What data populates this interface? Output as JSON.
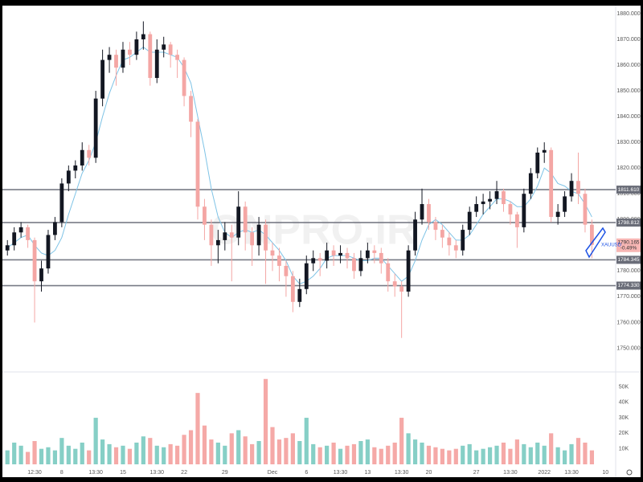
{
  "chart_data": [
    {
      "type": "candlestick",
      "watermark": "ONPRO.IR",
      "symbol": "XAUUSD",
      "categories": [
        null,
        null,
        null,
        null,
        "12:30",
        null,
        null,
        null,
        "8",
        null,
        null,
        null,
        null,
        "13:30",
        null,
        null,
        null,
        "15",
        null,
        null,
        null,
        null,
        "13:30",
        null,
        null,
        null,
        "22",
        null,
        null,
        null,
        null,
        null,
        "29",
        null,
        null,
        null,
        null,
        null,
        null,
        "Dec",
        null,
        null,
        null,
        null,
        "6",
        null,
        null,
        null,
        null,
        "13:30",
        null,
        null,
        null,
        "13",
        null,
        null,
        null,
        null,
        "13:30",
        null,
        null,
        null,
        "20",
        null,
        null,
        null,
        null,
        null,
        null,
        "27",
        null,
        null,
        null,
        null,
        "13:30",
        null,
        null,
        null,
        null,
        "2022",
        null,
        null,
        null,
        "13:30",
        null,
        null,
        null,
        null,
        "10"
      ],
      "open": [
        1788,
        1790,
        1795,
        1797,
        1792,
        1776,
        1781,
        1794,
        1799,
        1814,
        1819,
        1821,
        1827,
        1824,
        1847,
        1862,
        1864,
        1859,
        1866,
        1864,
        1870,
        1872,
        1855,
        1866,
        1868,
        1864,
        1862,
        1848,
        1838,
        1805,
        1798,
        1790,
        1792,
        1795,
        1793,
        1805,
        1795,
        1790,
        1798,
        1788,
        1786,
        1782,
        1778,
        1768,
        1773,
        1783,
        1785,
        1784,
        1788,
        1786,
        1787,
        1785,
        1780,
        1785,
        1788,
        1787,
        1783,
        1776,
        1774,
        1772,
        1788,
        1800,
        1806,
        1799,
        1796,
        1793,
        1790,
        1788,
        1796,
        1803,
        1806,
        1807,
        1808,
        1811,
        1806,
        1802,
        1797,
        1810,
        1818,
        1826,
        1827,
        1801,
        1803,
        1809,
        1815,
        1810,
        1798,
        null,
        null
      ],
      "high": [
        1792,
        1797,
        1799,
        1798,
        1793,
        1784,
        1796,
        1801,
        1816,
        1821,
        1823,
        1830,
        1829,
        1850,
        1866,
        1867,
        1866,
        1869,
        1869,
        1873,
        1877,
        1873,
        1870,
        1871,
        1869,
        1866,
        1863,
        1850,
        1839,
        1808,
        1800,
        1796,
        1799,
        1798,
        1811,
        1807,
        1797,
        1801,
        1800,
        1791,
        1789,
        1784,
        1780,
        1777,
        1786,
        1788,
        1787,
        1791,
        1790,
        1790,
        1789,
        1787,
        1788,
        1791,
        1790,
        1789,
        1785,
        1779,
        1776,
        1790,
        1803,
        1812,
        1808,
        1801,
        1798,
        1795,
        1792,
        1798,
        1805,
        1809,
        1810,
        1811,
        1815,
        1812,
        1807,
        1803,
        1812,
        1820,
        1828,
        1830,
        1828,
        1806,
        1811,
        1818,
        1826,
        1812,
        1800,
        null,
        null
      ],
      "low": [
        1786,
        1788,
        1793,
        1789,
        1760,
        1772,
        1779,
        1792,
        1797,
        1811,
        1816,
        1819,
        1821,
        1822,
        1844,
        1857,
        1852,
        1857,
        1860,
        1862,
        1866,
        1852,
        1853,
        1863,
        1859,
        1855,
        1844,
        1832,
        1800,
        1792,
        1782,
        1783,
        1788,
        1776,
        1790,
        1788,
        1782,
        1786,
        1775,
        1780,
        1776,
        1770,
        1764,
        1766,
        1771,
        1780,
        1778,
        1781,
        1782,
        1783,
        1781,
        1777,
        1778,
        1783,
        1783,
        1779,
        1772,
        1770,
        1754,
        1770,
        1786,
        1798,
        1796,
        1792,
        1789,
        1786,
        1785,
        1786,
        1794,
        1801,
        1802,
        1804,
        1806,
        1803,
        1798,
        1789,
        1795,
        1808,
        1816,
        1822,
        1799,
        1798,
        1801,
        1807,
        1806,
        1795,
        1785,
        null,
        null
      ],
      "close": [
        1790,
        1795,
        1797,
        1792,
        1776,
        1781,
        1794,
        1799,
        1814,
        1819,
        1821,
        1827,
        1824,
        1847,
        1862,
        1864,
        1859,
        1866,
        1864,
        1870,
        1872,
        1855,
        1866,
        1868,
        1864,
        1862,
        1848,
        1838,
        1805,
        1798,
        1790,
        1792,
        1795,
        1793,
        1805,
        1795,
        1790,
        1798,
        1788,
        1786,
        1782,
        1778,
        1768,
        1773,
        1783,
        1785,
        1784,
        1788,
        1786,
        1787,
        1785,
        1780,
        1785,
        1788,
        1787,
        1783,
        1776,
        1774,
        1772,
        1788,
        1800,
        1806,
        1799,
        1796,
        1793,
        1790,
        1788,
        1796,
        1803,
        1806,
        1807,
        1808,
        1811,
        1806,
        1802,
        1797,
        1810,
        1818,
        1826,
        1827,
        1801,
        1803,
        1809,
        1815,
        1810,
        1798,
        1790.165,
        null,
        null
      ],
      "ma": [
        1789,
        1791,
        1793,
        1794,
        1790,
        1787,
        1786,
        1788,
        1793,
        1802,
        1810,
        1818,
        1823,
        1830,
        1840,
        1849,
        1856,
        1862,
        1863,
        1865,
        1867,
        1865,
        1865,
        1865,
        1864,
        1863,
        1859,
        1853,
        1840,
        1827,
        1812,
        1801,
        1795,
        1793,
        1795,
        1796,
        1795,
        1796,
        1794,
        1791,
        1788,
        1784,
        1778,
        1775,
        1776,
        1778,
        1781,
        1785,
        1786,
        1786,
        1786,
        1785,
        1784,
        1784,
        1785,
        1785,
        1782,
        1779,
        1776,
        1778,
        1784,
        1792,
        1798,
        1800,
        1798,
        1795,
        1792,
        1792,
        1794,
        1798,
        1802,
        1805,
        1808,
        1808,
        1807,
        1805,
        1805,
        1808,
        1813,
        1820,
        1818,
        1814,
        1813,
        1811,
        1810,
        1806,
        1801,
        null,
        null
      ],
      "up_color": "#131722",
      "down_color": "#f4a6a4",
      "ma_color": "#7ec3e6",
      "ylim": [
        1741.1,
        1883.1
      ],
      "yticks": [
        {
          "value": 1880,
          "label": "1880.000"
        },
        {
          "value": 1870,
          "label": "1870.000"
        },
        {
          "value": 1860,
          "label": "1860.000"
        },
        {
          "value": 1850,
          "label": "1850.000"
        },
        {
          "value": 1840,
          "label": "1840.000"
        },
        {
          "value": 1830,
          "label": "1830.000"
        },
        {
          "value": 1820,
          "label": "1820.000"
        },
        {
          "value": 1810,
          "label": "1810.000"
        },
        {
          "value": 1800,
          "label": "1800.000"
        },
        {
          "value": 1790,
          "label": "1790.000"
        },
        {
          "value": 1780,
          "label": "1780.000"
        },
        {
          "value": 1770,
          "label": "1770.000"
        },
        {
          "value": 1760,
          "label": "1760.000"
        },
        {
          "value": 1750,
          "label": "1750.000"
        }
      ],
      "levels": [
        {
          "value": 1811.61,
          "label": "1811.610"
        },
        {
          "value": 1798.812,
          "label": "1798.812"
        },
        {
          "value": 1784.345,
          "label": "1784.345"
        },
        {
          "value": 1774.33,
          "label": "1774.330"
        }
      ],
      "last": {
        "value": 1790.165,
        "label": "1790.165",
        "change": "-0.49%"
      },
      "grid": false
    },
    {
      "type": "volume",
      "values": [
        9000,
        14000,
        12000,
        8000,
        15000,
        10000,
        11000,
        9000,
        17000,
        12000,
        10000,
        14000,
        9000,
        30000,
        16000,
        13000,
        11000,
        12000,
        10000,
        14000,
        18000,
        17000,
        12000,
        11000,
        13000,
        12000,
        19000,
        22000,
        46000,
        25000,
        16000,
        14000,
        12000,
        20000,
        22000,
        18000,
        13000,
        15000,
        55000,
        24000,
        16000,
        17000,
        20000,
        15000,
        30000,
        13000,
        11000,
        12000,
        14000,
        10000,
        12000,
        13000,
        15000,
        16000,
        11000,
        10000,
        12000,
        14000,
        30000,
        20000,
        16000,
        14000,
        12000,
        11000,
        10000,
        9000,
        10000,
        12000,
        13000,
        9000,
        10000,
        11000,
        12000,
        14000,
        10000,
        16000,
        13000,
        11000,
        14000,
        12000,
        20000,
        11000,
        9000,
        13000,
        17000,
        14000,
        9000,
        null,
        null
      ],
      "up_color": "#86cfc6",
      "down_color": "#f5a9a7",
      "ylim": [
        0,
        58500
      ],
      "yticks": [
        {
          "value": 10000,
          "label": "10K"
        },
        {
          "value": 20000,
          "label": "20K"
        },
        {
          "value": 30000,
          "label": "30K"
        },
        {
          "value": 40000,
          "label": "40K"
        },
        {
          "value": 50000,
          "label": "50K"
        }
      ]
    }
  ]
}
